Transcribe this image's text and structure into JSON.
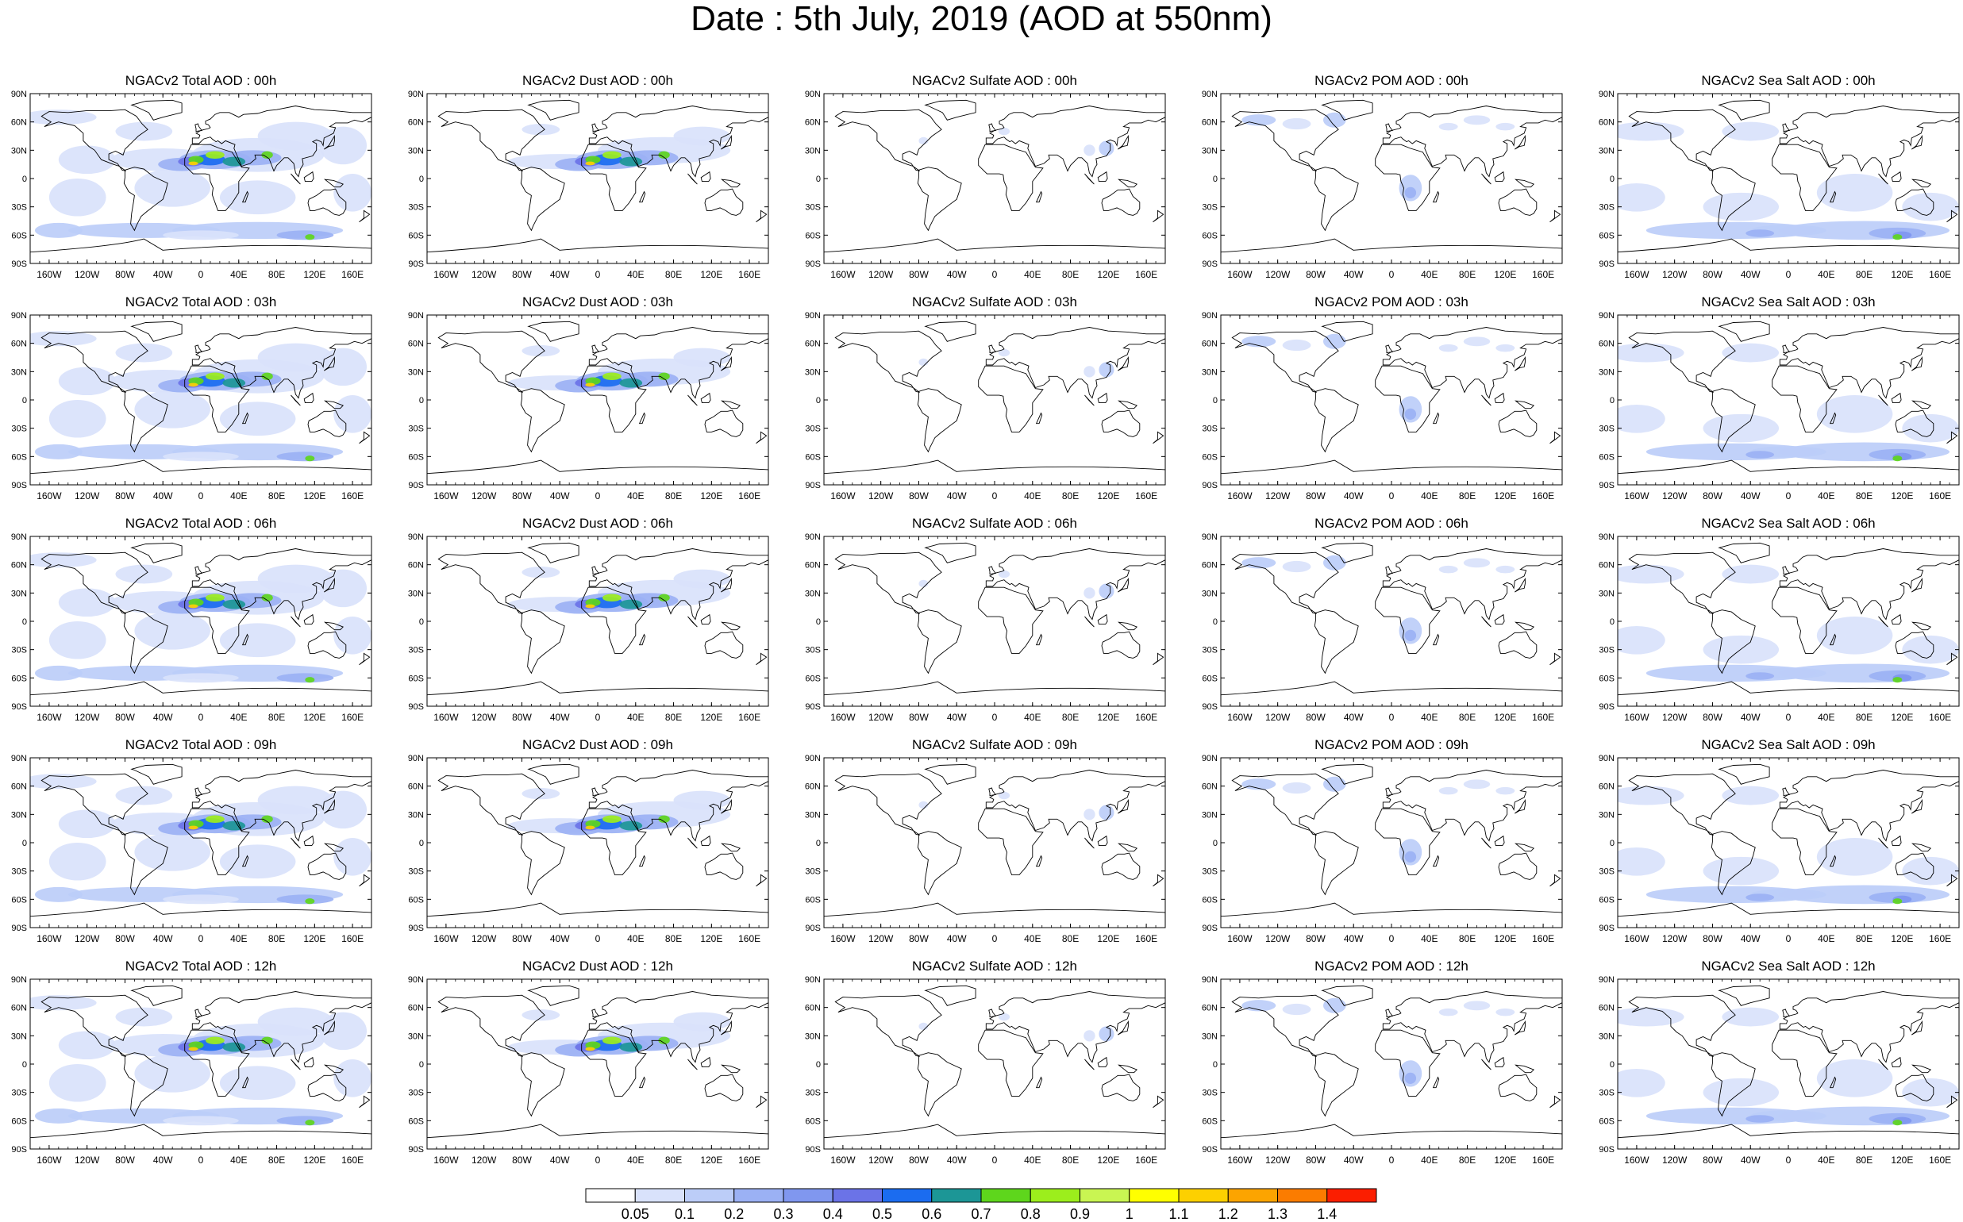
{
  "title": "Date : 5th July, 2019 (AOD at 550nm)",
  "lat_labels": [
    "90N",
    "60N",
    "30N",
    "0",
    "30S",
    "60S",
    "90S"
  ],
  "lon_labels": [
    "160W",
    "120W",
    "80W",
    "40W",
    "0",
    "40E",
    "80E",
    "120E",
    "160E"
  ],
  "colorbar": {
    "labels": [
      "0.05",
      "0.1",
      "0.2",
      "0.3",
      "0.4",
      "0.5",
      "0.6",
      "0.7",
      "0.8",
      "0.9",
      "1",
      "1.1",
      "1.2",
      "1.3",
      "1.4"
    ],
    "colors": [
      "#ffffff",
      "#d9e2fb",
      "#bccdf8",
      "#9bb1f4",
      "#8097ef",
      "#6b73e7",
      "#1b6cf0",
      "#1c9696",
      "#5ed61c",
      "#9cee1c",
      "#c9f552",
      "#ffff00",
      "#fdd000",
      "#fca400",
      "#fb7c00",
      "#fb1e00"
    ]
  },
  "panels": [
    {
      "title": "NGACv2 Total AOD : 00h",
      "species": "total"
    },
    {
      "title": "NGACv2 Dust AOD : 00h",
      "species": "dust"
    },
    {
      "title": "NGACv2 Sulfate AOD : 00h",
      "species": "sulfate"
    },
    {
      "title": "NGACv2 POM AOD : 00h",
      "species": "pom"
    },
    {
      "title": "NGACv2 Sea Salt AOD : 00h",
      "species": "seasalt"
    },
    {
      "title": "NGACv2 Total AOD : 03h",
      "species": "total"
    },
    {
      "title": "NGACv2 Dust AOD : 03h",
      "species": "dust"
    },
    {
      "title": "NGACv2 Sulfate AOD : 03h",
      "species": "sulfate"
    },
    {
      "title": "NGACv2 POM AOD : 03h",
      "species": "pom"
    },
    {
      "title": "NGACv2 Sea Salt AOD : 03h",
      "species": "seasalt"
    },
    {
      "title": "NGACv2 Total AOD : 06h",
      "species": "total"
    },
    {
      "title": "NGACv2 Dust AOD : 06h",
      "species": "dust"
    },
    {
      "title": "NGACv2 Sulfate AOD : 06h",
      "species": "sulfate"
    },
    {
      "title": "NGACv2 POM AOD : 06h",
      "species": "pom"
    },
    {
      "title": "NGACv2 Sea Salt AOD : 06h",
      "species": "seasalt"
    },
    {
      "title": "NGACv2 Total AOD : 09h",
      "species": "total"
    },
    {
      "title": "NGACv2 Dust AOD : 09h",
      "species": "dust"
    },
    {
      "title": "NGACv2 Sulfate AOD : 09h",
      "species": "sulfate"
    },
    {
      "title": "NGACv2 POM AOD : 09h",
      "species": "pom"
    },
    {
      "title": "NGACv2 Sea Salt  AOD : 09h",
      "species": "seasalt"
    },
    {
      "title": "NGACv2 Total AOD  : 12h",
      "species": "total"
    },
    {
      "title": "NGACv2 Dust AOD : 12h",
      "species": "dust"
    },
    {
      "title": "NGACv2 Sulfate AOD : 12h",
      "species": "sulfate"
    },
    {
      "title": "NGACv2 POM  AOD : 12h",
      "species": "pom"
    },
    {
      "title": "NGACv2 Sea Salt  AOD : 12h",
      "species": "seasalt"
    }
  ]
}
